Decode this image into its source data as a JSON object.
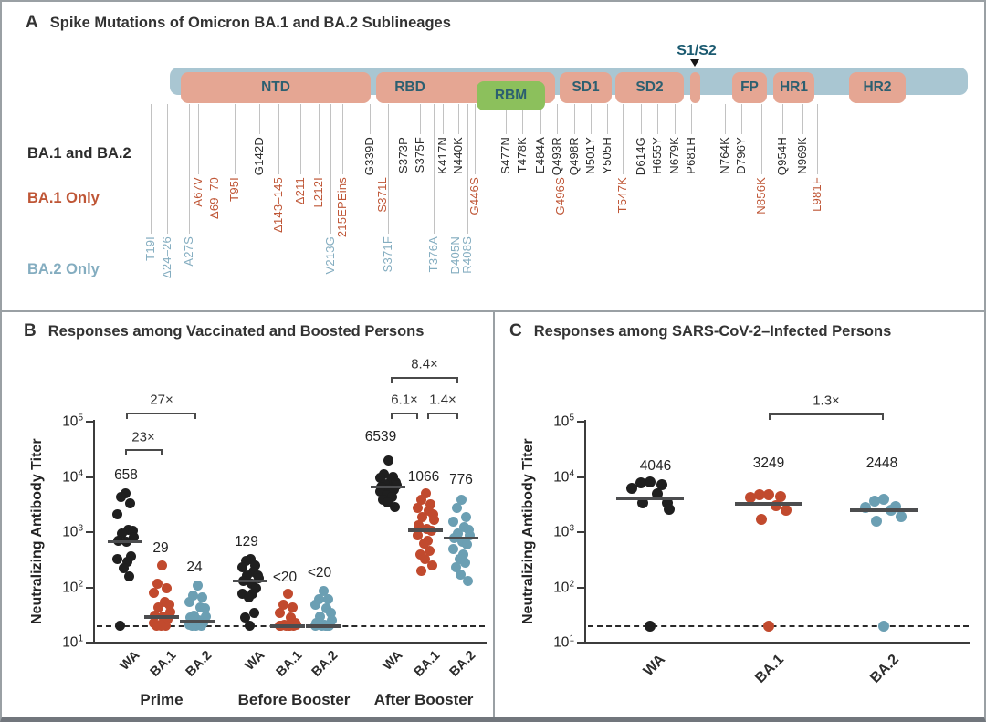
{
  "panelA": {
    "panel_label": "A",
    "title": "Spike Mutations of Omicron BA.1 and BA.2 Sublineages",
    "s1s2_label": "S1/S2",
    "legend_rows": [
      {
        "id": "both",
        "label": "BA.1 and BA.2"
      },
      {
        "id": "ba1",
        "label": "BA.1 Only"
      },
      {
        "id": "ba2",
        "label": "BA.2 Only"
      }
    ],
    "domains": [
      {
        "name": "NTD",
        "x1": 196,
        "x2": 404
      },
      {
        "name": "RBD",
        "x1": 410,
        "x2": 606,
        "label_x": 447
      },
      {
        "name": "RBM",
        "x1": 520,
        "x2": 595,
        "style": "rbm"
      },
      {
        "name": "SD1",
        "x1": 611,
        "x2": 668
      },
      {
        "name": "SD2",
        "x1": 672,
        "x2": 747
      },
      {
        "name": "",
        "x1": 754,
        "x2": 765
      },
      {
        "name": "FP",
        "x1": 800,
        "x2": 838
      },
      {
        "name": "HR1",
        "x1": 845,
        "x2": 890
      },
      {
        "name": "HR2",
        "x1": 928,
        "x2": 990
      }
    ],
    "mutations": {
      "both": [
        [
          "G142D",
          282
        ],
        [
          "G339D",
          403
        ],
        [
          "S373P",
          440
        ],
        [
          "S375F",
          458
        ],
        [
          "K417N",
          483
        ],
        [
          "N440K",
          500
        ],
        [
          "S477N",
          552
        ],
        [
          "T478K",
          570
        ],
        [
          "E484A",
          590
        ],
        [
          "Q493R",
          608
        ],
        [
          "Q498R",
          627
        ],
        [
          "N501Y",
          645
        ],
        [
          "Y505H",
          663
        ],
        [
          "D614G",
          700
        ],
        [
          "H655Y",
          718
        ],
        [
          "N679K",
          737
        ],
        [
          "P681H",
          755
        ],
        [
          "N764K",
          792
        ],
        [
          "D796Y",
          810
        ],
        [
          "Q954H",
          855
        ],
        [
          "N969K",
          877
        ]
      ],
      "ba1": [
        [
          "A67V",
          215
        ],
        [
          "Δ69–70",
          233
        ],
        [
          "T95I",
          255
        ],
        [
          "Δ143–145",
          303
        ],
        [
          "Δ211",
          327
        ],
        [
          "L212I",
          347
        ],
        [
          "215EPEins",
          373
        ],
        [
          "S371L",
          417
        ],
        [
          "G446S",
          518
        ],
        [
          "G496S",
          612
        ],
        [
          "T547K",
          680
        ],
        [
          "N856K",
          832
        ],
        [
          "L981F",
          893
        ]
      ],
      "ba2": [
        [
          "T19I",
          163
        ],
        [
          "Δ24–26",
          181
        ],
        [
          "A27S",
          205
        ],
        [
          "V213G",
          360
        ],
        [
          "S371F",
          423
        ],
        [
          "T376A",
          473
        ],
        [
          "D405N",
          497
        ],
        [
          "R408S",
          510
        ]
      ]
    },
    "colors": {
      "bar": "#a9c6d2",
      "domain": "#e5a693",
      "rbm": "#8cc05c",
      "domain_text": "#2c5f70",
      "black_text": "#2b2b2b",
      "red_text": "#bf5636",
      "blue_text": "#84adc0",
      "leader": "#c2c2c2",
      "s1s2_text": "#1b5a70"
    }
  },
  "chart_data": [
    {
      "type": "scatter",
      "panel_label": "B",
      "title": "Responses among Vaccinated and Boosted Persons",
      "ylabel": "Neutralizing Antibody Titer",
      "yscale": "log",
      "ylim": [
        10,
        100000
      ],
      "y_tick_exponents": [
        1,
        2,
        3,
        4,
        5
      ],
      "limit_of_detection": 20,
      "lod_line": "dashed horizontal line at titer 20",
      "cohorts": [
        "Prime",
        "Before Booster",
        "After Booster"
      ],
      "groups": [
        {
          "id": "prime-wa",
          "cohort": "Prime",
          "variant": "WA",
          "color": "#1f1f1f",
          "gmt_label": "658",
          "gmt": 658,
          "values": [
            5100,
            4400,
            3300,
            2100,
            1100,
            1050,
            950,
            800,
            700,
            660,
            360,
            330,
            290,
            220,
            160,
            20
          ]
        },
        {
          "id": "prime-ba1",
          "cohort": "Prime",
          "variant": "BA.1",
          "color": "#c14a2e",
          "gmt_label": "29",
          "gmt": 29,
          "values": [
            245,
            118,
            98,
            81,
            54,
            49,
            44,
            36,
            31,
            30,
            26,
            23,
            21,
            21,
            20,
            20,
            20
          ]
        },
        {
          "id": "prime-ba2",
          "cohort": "Prime",
          "variant": "BA.2",
          "color": "#6b9fb3",
          "gmt_label": "24",
          "gmt": 24,
          "values": [
            106,
            72,
            67,
            55,
            44,
            41,
            31,
            30,
            28,
            25,
            23,
            21,
            21,
            20,
            20,
            20
          ]
        },
        {
          "id": "before-wa",
          "cohort": "Before Booster",
          "variant": "WA",
          "color": "#1f1f1f",
          "gmt_label": "129",
          "gmt": 129,
          "values": [
            330,
            296,
            245,
            227,
            188,
            167,
            167,
            144,
            129,
            115,
            95,
            78,
            78,
            65,
            34,
            28,
            20
          ]
        },
        {
          "id": "before-ba1",
          "cohort": "Before Booster",
          "variant": "BA.1",
          "color": "#c14a2e",
          "gmt_label": "<20",
          "gmt": 19.5,
          "values": [
            78,
            49,
            44,
            34,
            28,
            23,
            21,
            21,
            20,
            20,
            20,
            20,
            20,
            20
          ]
        },
        {
          "id": "before-ba2",
          "cohort": "Before Booster",
          "variant": "BA.2",
          "color": "#6b9fb3",
          "gmt_label": "<20",
          "gmt": 19.5,
          "values": [
            87,
            60,
            60,
            49,
            41,
            34,
            30,
            25,
            23,
            21,
            20,
            20,
            20,
            20,
            20
          ]
        },
        {
          "id": "after-wa",
          "cohort": "After Booster",
          "variant": "WA",
          "color": "#1f1f1f",
          "gmt_label": "6539",
          "gmt": 6539,
          "values": [
            20000,
            11000,
            10000,
            9500,
            8700,
            7900,
            7500,
            7100,
            6500,
            6200,
            5800,
            5500,
            5100,
            4700,
            4300,
            3900,
            3400,
            2900
          ]
        },
        {
          "id": "after-ba1",
          "cohort": "After Booster",
          "variant": "BA.1",
          "color": "#c14a2e",
          "gmt_label": "1066",
          "gmt": 1066,
          "values": [
            5000,
            3900,
            3250,
            2700,
            2400,
            2100,
            1850,
            1650,
            1350,
            1150,
            1050,
            860,
            700,
            630,
            450,
            400,
            330,
            245,
            200
          ]
        },
        {
          "id": "after-ba2",
          "cohort": "After Booster",
          "variant": "BA.2",
          "color": "#6b9fb3",
          "gmt_label": "776",
          "gmt": 776,
          "values": [
            3900,
            2700,
            1850,
            1550,
            1250,
            1100,
            950,
            860,
            780,
            670,
            600,
            500,
            400,
            330,
            275,
            230,
            170,
            130
          ]
        }
      ],
      "fold_changes": [
        {
          "label": "23×",
          "between": [
            "Prime WA",
            "Prime BA.1"
          ]
        },
        {
          "label": "27×",
          "between": [
            "Prime WA",
            "Prime BA.2"
          ]
        },
        {
          "label": "8.4×",
          "between": [
            "After Booster WA",
            "After Booster BA.2"
          ]
        },
        {
          "label": "6.1×",
          "between": [
            "After Booster WA",
            "After Booster BA.1"
          ]
        },
        {
          "label": "1.4×",
          "between": [
            "After Booster BA.1",
            "After Booster BA.2"
          ]
        }
      ]
    },
    {
      "type": "scatter",
      "panel_label": "C",
      "title": "Responses among SARS-CoV-2–Infected Persons",
      "ylabel": "Neutralizing Antibody Titer",
      "yscale": "log",
      "ylim": [
        10,
        100000
      ],
      "y_tick_exponents": [
        1,
        2,
        3,
        4,
        5
      ],
      "limit_of_detection": 20,
      "lod_line": "dashed horizontal line at titer 20",
      "cohorts": [],
      "groups": [
        {
          "id": "c-wa",
          "cohort": "",
          "variant": "WA",
          "color": "#1f1f1f",
          "gmt_label": "4046",
          "gmt": 4046,
          "values": [
            8100,
            7800,
            7300,
            6300,
            5000,
            3400,
            3400,
            2600,
            20
          ]
        },
        {
          "id": "c-ba1",
          "cohort": "",
          "variant": "BA.1",
          "color": "#c14a2e",
          "gmt_label": "3249",
          "gmt": 3249,
          "values": [
            4800,
            4700,
            4400,
            4300,
            3000,
            2500,
            1700,
            20
          ]
        },
        {
          "id": "c-ba2",
          "cohort": "",
          "variant": "BA.2",
          "color": "#6b9fb3",
          "gmt_label": "2448",
          "gmt": 2448,
          "values": [
            3900,
            3600,
            2900,
            2800,
            2500,
            1900,
            1600,
            20
          ]
        }
      ],
      "fold_changes": [
        {
          "label": "1.3×",
          "between": [
            "BA.1",
            "BA.2"
          ]
        }
      ]
    }
  ]
}
